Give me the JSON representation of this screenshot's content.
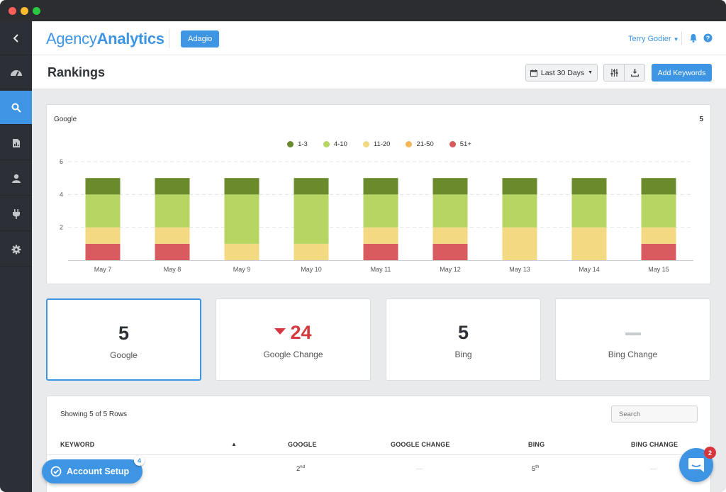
{
  "app": {
    "logo_part1": "Agency",
    "logo_part2": "Analytics",
    "client": "Adagio",
    "user": "Terry Godier"
  },
  "sidebar": {
    "items": [
      {
        "name": "back",
        "icon": "chevron-left-icon"
      },
      {
        "name": "dashboard",
        "icon": "gauge-icon"
      },
      {
        "name": "rankings",
        "icon": "search-icon",
        "active": true
      },
      {
        "name": "reports",
        "icon": "report-icon"
      },
      {
        "name": "contacts",
        "icon": "user-icon"
      },
      {
        "name": "integrations",
        "icon": "plug-icon"
      },
      {
        "name": "settings",
        "icon": "gear-icon"
      }
    ]
  },
  "header": {
    "title": "Rankings",
    "date_range": "Last 30 Days",
    "add_keywords": "Add Keywords"
  },
  "chart_card": {
    "title": "Google",
    "count": "5"
  },
  "chart_data": {
    "type": "bar",
    "stacked": true,
    "categories": [
      "May 7",
      "May 8",
      "May 9",
      "May 10",
      "May 11",
      "May 12",
      "May 13",
      "May 14",
      "May 15"
    ],
    "series": [
      {
        "name": "51+",
        "color": "#d95b5f",
        "values": [
          1,
          1,
          0,
          0,
          1,
          1,
          0,
          0,
          1
        ]
      },
      {
        "name": "21-50",
        "color": "#f5b655",
        "values": [
          0,
          0,
          0,
          0,
          0,
          0,
          0,
          0,
          0
        ]
      },
      {
        "name": "11-20",
        "color": "#f4d983",
        "values": [
          1,
          1,
          1,
          1,
          1,
          1,
          2,
          2,
          1
        ]
      },
      {
        "name": "4-10",
        "color": "#b6d563",
        "values": [
          2,
          2,
          3,
          3,
          2,
          2,
          2,
          2,
          2
        ]
      },
      {
        "name": "1-3",
        "color": "#6a8a2c",
        "values": [
          1,
          1,
          1,
          1,
          1,
          1,
          1,
          1,
          1
        ]
      }
    ],
    "legend_order": [
      "1-3",
      "4-10",
      "11-20",
      "21-50",
      "51+"
    ],
    "yticks": [
      "2",
      "4",
      "6"
    ],
    "ylim": [
      0,
      6
    ],
    "grid": true,
    "legend_position": "top-center"
  },
  "stats": [
    {
      "value": "5",
      "label": "Google",
      "selected": true
    },
    {
      "value": "24",
      "label": "Google Change",
      "negative": true
    },
    {
      "value": "5",
      "label": "Bing"
    },
    {
      "value": "",
      "label": "Bing Change"
    }
  ],
  "table": {
    "rows_info": "Showing 5 of 5 Rows",
    "search_placeholder": "Search",
    "headers": {
      "keyword": "KEYWORD",
      "google": "GOOGLE",
      "google_change": "GOOGLE CHANGE",
      "bing": "BING",
      "bing_change": "BING CHANGE"
    },
    "row1": {
      "google_num": "2",
      "google_suffix": "nd",
      "google_change": "—",
      "bing_num": "5",
      "bing_suffix": "th",
      "bing_change": "—"
    }
  },
  "widgets": {
    "account_setup": "Account Setup",
    "account_setup_badge": "4",
    "chat_badge": "2"
  }
}
